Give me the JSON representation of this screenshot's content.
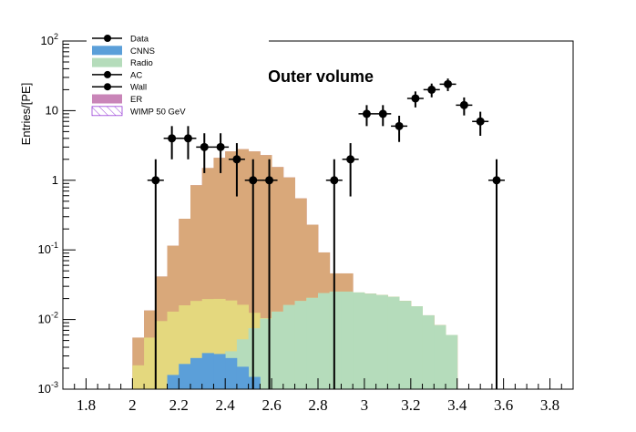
{
  "chart_data": {
    "type": "histogram",
    "title": "Outer volume",
    "xlabel": "",
    "ylabel": "Entries/[PE]",
    "xlim": [
      1.7,
      3.9
    ],
    "ylim": [
      0.001,
      100
    ],
    "yscale": "log",
    "grid": false,
    "legend_position": "top-left",
    "x_ticks": [
      "1.8",
      "2",
      "2.2",
      "2.4",
      "2.6",
      "2.8",
      "3",
      "3.2",
      "3.4",
      "3.6",
      "3.8"
    ],
    "y_ticks": [
      {
        "base": "10",
        "exp": "-3"
      },
      {
        "base": "10",
        "exp": "-2"
      },
      {
        "base": "10",
        "exp": "-1"
      },
      {
        "base": "1",
        "exp": ""
      },
      {
        "base": "10",
        "exp": ""
      },
      {
        "base": "10",
        "exp": "2"
      }
    ],
    "bin_edges": [
      1.75,
      1.8,
      1.85,
      1.9,
      1.95,
      2.0,
      2.05,
      2.1,
      2.15,
      2.2,
      2.25,
      2.3,
      2.35,
      2.4,
      2.45,
      2.5,
      2.55,
      2.6,
      2.65,
      2.7,
      2.75,
      2.8,
      2.85,
      2.9,
      2.95,
      3.0,
      3.05,
      3.1,
      3.15,
      3.2,
      3.25,
      3.3,
      3.35,
      3.4,
      3.45,
      3.5,
      3.55,
      3.6,
      3.65,
      3.7,
      3.75
    ],
    "series": [
      {
        "name": "CNNS",
        "kind": "stack",
        "color": "#5b9fd9",
        "values": [
          0,
          0,
          0,
          0,
          0,
          0,
          0,
          0,
          0.0016,
          0.0023,
          0.0028,
          0.0033,
          0.0032,
          0.0028,
          0.0021,
          0.0015,
          0,
          0,
          0,
          0,
          0,
          0,
          0,
          0,
          0,
          0,
          0,
          0,
          0,
          0,
          0,
          0,
          0,
          0,
          0,
          0,
          0,
          0,
          0,
          0
        ]
      },
      {
        "name": "Radio",
        "kind": "stack",
        "color": "#b5dcbb",
        "values": [
          0,
          0,
          0,
          0,
          0,
          0,
          0,
          0,
          0.0016,
          0.0023,
          0.0028,
          0.0033,
          0.0032,
          0.0035,
          0.0052,
          0.0075,
          0.0103,
          0.013,
          0.0162,
          0.0185,
          0.0205,
          0.024,
          0.0252,
          0.0252,
          0.0245,
          0.0235,
          0.0225,
          0.0212,
          0.0185,
          0.0155,
          0.0115,
          0.0083,
          0.006,
          0,
          0,
          0,
          0,
          0,
          0,
          0
        ]
      },
      {
        "name": "AC",
        "kind": "stack",
        "color": "#e4d87e",
        "values": [
          0,
          0,
          0,
          0,
          0,
          0.0022,
          0.0055,
          0.0095,
          0.013,
          0.016,
          0.0185,
          0.0197,
          0.0198,
          0.0188,
          0.0163,
          0.0125,
          0.0105,
          0.013,
          0.0162,
          0.0185,
          0.0205,
          0.024,
          0.0252,
          0.0252,
          0.0245,
          0.0235,
          0.0225,
          0.0212,
          0.0185,
          0.0155,
          0.0115,
          0.0083,
          0.006,
          0,
          0,
          0,
          0,
          0,
          0,
          0
        ]
      },
      {
        "name": "Wall",
        "kind": "stack",
        "color": "#d9a87a",
        "values": [
          0,
          0,
          0,
          0,
          0,
          0.0055,
          0.0135,
          0.0415,
          0.115,
          0.28,
          0.85,
          1.5,
          2.1,
          2.6,
          2.8,
          2.6,
          2.3,
          1.55,
          1.1,
          0.55,
          0.23,
          0.092,
          0.046,
          0.046,
          0.024,
          0.0235,
          0.0225,
          0.0212,
          0.0185,
          0.0155,
          0.0115,
          0.0083,
          0.006,
          0,
          0,
          0,
          0,
          0,
          0,
          0
        ]
      },
      {
        "name": "ER",
        "kind": "stack",
        "color": "#c985b8",
        "values": [
          0,
          0,
          0,
          0,
          0,
          0.0055,
          0.0135,
          0.0415,
          0.115,
          0.28,
          0.85,
          1.5,
          2.1,
          2.6,
          2.8,
          2.6,
          2.3,
          1.55,
          1.1,
          0.55,
          0.23,
          0.092,
          0.046,
          0.046,
          0.024,
          0.0235,
          0.0225,
          0.0212,
          0.0185,
          0.0155,
          0.0115,
          0.0083,
          0.006,
          0,
          0,
          0,
          0,
          0,
          0,
          0
        ]
      },
      {
        "name": "WIMP 50 GeV",
        "kind": "hatch",
        "color": "#9a40d8",
        "values": [
          0,
          0,
          0,
          0,
          0,
          0,
          0,
          0,
          0,
          0,
          0,
          0,
          0,
          0,
          0,
          0,
          0,
          0,
          0,
          0,
          0,
          0,
          0,
          0,
          0,
          0,
          0,
          0,
          0,
          0,
          0,
          0,
          0,
          0,
          0,
          0,
          0,
          0,
          0,
          0
        ]
      },
      {
        "name": "Data",
        "kind": "points",
        "color": "#000000",
        "x": [
          2.1,
          2.17,
          2.24,
          2.31,
          2.38,
          2.45,
          2.52,
          2.59,
          2.66,
          2.73,
          2.8,
          2.87,
          2.94,
          3.01,
          3.08,
          3.15,
          3.22,
          3.29,
          3.36,
          3.43,
          3.5,
          3.57
        ],
        "values": [
          1,
          4,
          4,
          3,
          3,
          2,
          1,
          1,
          0,
          0,
          0,
          1,
          2,
          9,
          9,
          6,
          15,
          20,
          24,
          12,
          7,
          1
        ]
      }
    ]
  }
}
